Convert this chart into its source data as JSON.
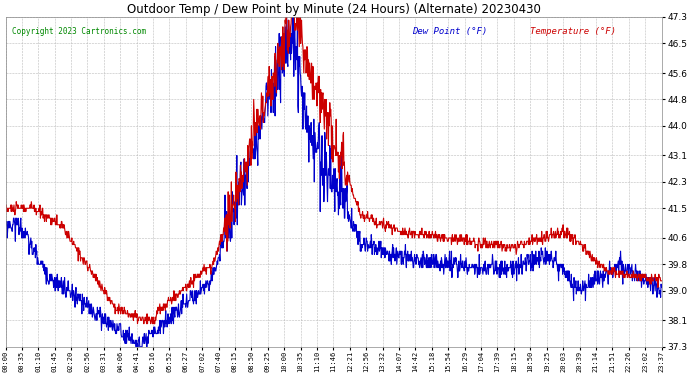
{
  "title": "Outdoor Temp / Dew Point by Minute (24 Hours) (Alternate) 20230430",
  "copyright": "Copyright 2023 Cartronics.com",
  "legend_dew": "Dew Point (°F)",
  "legend_temp": "Temperature (°F)",
  "ylim": [
    37.3,
    47.3
  ],
  "yticks": [
    37.3,
    38.1,
    39.0,
    39.8,
    40.6,
    41.5,
    42.3,
    43.1,
    44.0,
    44.8,
    45.6,
    46.5,
    47.3
  ],
  "bg_color": "#ffffff",
  "grid_color": "#bbbbbb",
  "temp_color": "#cc0000",
  "dew_color": "#0000cc",
  "line_width": 0.8,
  "tick_labels": [
    "00:00",
    "00:35",
    "01:10",
    "01:45",
    "02:20",
    "02:56",
    "03:31",
    "04:06",
    "04:41",
    "05:16",
    "05:52",
    "06:27",
    "07:02",
    "07:40",
    "08:15",
    "08:50",
    "09:25",
    "10:00",
    "10:35",
    "11:10",
    "11:46",
    "12:21",
    "12:56",
    "13:32",
    "14:07",
    "14:42",
    "15:18",
    "15:54",
    "16:29",
    "17:04",
    "17:39",
    "18:15",
    "18:50",
    "19:25",
    "20:03",
    "20:39",
    "21:14",
    "21:51",
    "22:26",
    "23:02",
    "23:37"
  ]
}
